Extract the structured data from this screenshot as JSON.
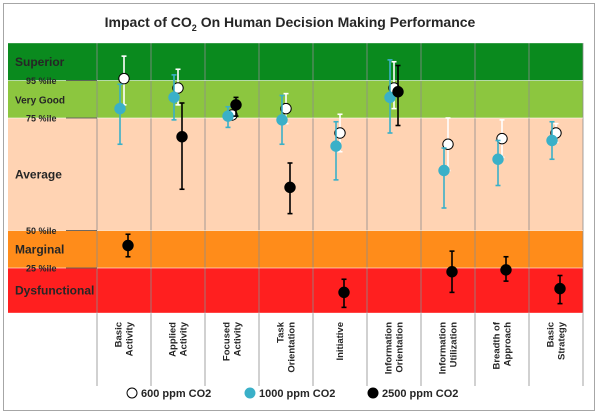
{
  "chart_data": {
    "type": "scatter",
    "title_main": "Impact of CO",
    "title_sub": "2",
    "title_rest": " On Human Decision Making Performance",
    "ylim": [
      0,
      100
    ],
    "grid": false,
    "bands": [
      {
        "name": "Dysfunctional",
        "from": 0,
        "to": 12,
        "color": "#ff1f1f"
      },
      {
        "name": "Marginal",
        "from": 12,
        "to": 22,
        "color": "#ff8c1a"
      },
      {
        "name": "Average",
        "from": 22,
        "to": 52,
        "color": "#ffd3b3"
      },
      {
        "name": "Very Good",
        "from": 52,
        "to": 62,
        "color": "#8cc63f"
      },
      {
        "name": "Superior",
        "from": 62,
        "to": 72,
        "color": "#0a8a1e"
      }
    ],
    "y_labels": [
      {
        "text": "Superior",
        "value": 67,
        "size": 12
      },
      {
        "text": "95 %ile",
        "value": 62,
        "size": 9
      },
      {
        "text": "Very Good",
        "value": 57,
        "size": 10
      },
      {
        "text": "75 %ile",
        "value": 52,
        "size": 9
      },
      {
        "text": "Average",
        "value": 37,
        "size": 12
      },
      {
        "text": "50 %ile",
        "value": 22,
        "size": 9
      },
      {
        "text": "Marginal",
        "value": 17,
        "size": 12
      },
      {
        "text": "25 %ile",
        "value": 12,
        "size": 9
      },
      {
        "text": "Dysfunctional",
        "value": 6,
        "size": 12
      }
    ],
    "categories": [
      [
        "Basic",
        "Activity"
      ],
      [
        "Applied",
        "Activity"
      ],
      [
        "Focused",
        "Activity"
      ],
      [
        "Task",
        "Orientation"
      ],
      [
        "Initiative"
      ],
      [
        "Information",
        "Orientation"
      ],
      [
        "Information",
        "Utilization"
      ],
      [
        "Breadth of",
        "Approach"
      ],
      [
        "Basic",
        "Strategy"
      ]
    ],
    "series": [
      {
        "name": "600 ppm CO2",
        "color": "#ffffff",
        "bar_color": "#ffffff",
        "values": [
          [
            62.5,
            68.5,
            55.5
          ],
          [
            60.0,
            65.0,
            55.5
          ],
          [
            52.8,
            54.0,
            51.5
          ],
          [
            54.5,
            58.5,
            50.5
          ],
          [
            48.0,
            53.0,
            43.0
          ],
          [
            60.0,
            67.0,
            54.5
          ],
          [
            45.0,
            52.0,
            38.0
          ],
          [
            46.5,
            51.5,
            41.5
          ],
          [
            48.0,
            50.5,
            45.5
          ]
        ]
      },
      {
        "name": "1000 ppm CO2",
        "color": "#3ab0c8",
        "bar_color": "#3ab0c8",
        "values": [
          [
            54.5,
            61.0,
            45.0
          ],
          [
            57.5,
            63.5,
            51.5
          ],
          [
            52.5,
            55.0,
            49.5
          ],
          [
            51.5,
            58.0,
            45.0
          ],
          [
            44.5,
            51.0,
            35.5
          ],
          [
            57.5,
            67.5,
            48.0
          ],
          [
            38.0,
            44.0,
            28.0
          ],
          [
            41.0,
            46.0,
            34.0
          ],
          [
            46.0,
            51.0,
            41.0
          ]
        ]
      },
      {
        "name": "2500 ppm CO2",
        "color": "#000000",
        "bar_color": "#000000",
        "values": [
          [
            18.0,
            21.0,
            15.0
          ],
          [
            47.0,
            56.0,
            33.0
          ],
          [
            55.5,
            57.5,
            52.5
          ],
          [
            33.5,
            40.0,
            26.5
          ],
          [
            5.5,
            9.0,
            1.5
          ],
          [
            59.0,
            66.0,
            50.0
          ],
          [
            11.0,
            16.5,
            5.5
          ],
          [
            11.5,
            15.0,
            8.5
          ],
          [
            6.5,
            10.0,
            2.5
          ]
        ]
      }
    ],
    "legend": [
      {
        "text": "600 ppm CO2",
        "color": "#ffffff"
      },
      {
        "text": "1000 ppm CO2",
        "color": "#3ab0c8"
      },
      {
        "text": "2500 ppm CO2",
        "color": "#000000"
      }
    ],
    "legend_position": "bottom"
  }
}
